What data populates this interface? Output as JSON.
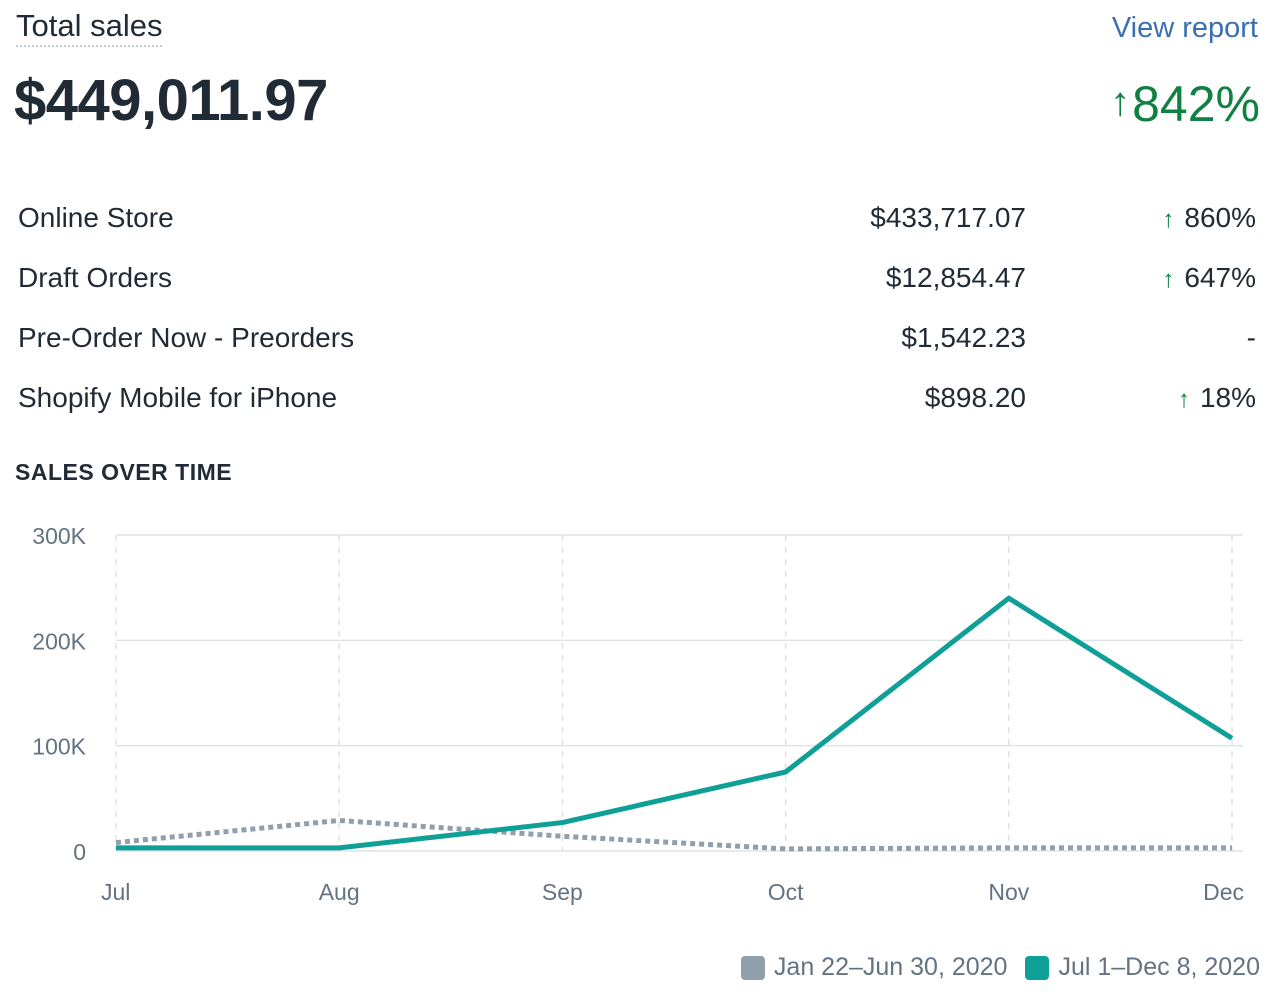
{
  "header": {
    "title": "Total sales",
    "view_report_label": "View report",
    "total_value": "$449,011.97",
    "total_change_arrow": "↑",
    "total_change": "842%"
  },
  "breakdown": [
    {
      "name": "Online Store",
      "amount": "$433,717.07",
      "arrow": "↑",
      "change": "860%"
    },
    {
      "name": "Draft Orders",
      "amount": "$12,854.47",
      "arrow": "↑",
      "change": "647%"
    },
    {
      "name": "Pre-Order Now - Preorders",
      "amount": "$1,542.23",
      "arrow": "",
      "change": "-"
    },
    {
      "name": "Shopify Mobile for iPhone",
      "amount": "$898.20",
      "arrow": "↑",
      "change": "18%"
    }
  ],
  "chart_section_title": "SALES OVER TIME",
  "colors": {
    "positive": "#108043",
    "link": "#3a6fb0",
    "current_series": "#0e9f96",
    "previous_series": "#919eab"
  },
  "chart_data": {
    "type": "line",
    "title": "SALES OVER TIME",
    "categories": [
      "Jul",
      "Aug",
      "Sep",
      "Oct",
      "Nov",
      "Dec"
    ],
    "y_tick_labels": [
      "0",
      "100K",
      "200K",
      "300K"
    ],
    "ylim": [
      0,
      300000
    ],
    "grid": true,
    "legend_position": "bottom-right",
    "series": [
      {
        "name": "Jan 22–Jun 30, 2020",
        "style": "dotted",
        "color": "#919eab",
        "values": [
          8000,
          29000,
          14000,
          2000,
          3000,
          3000
        ]
      },
      {
        "name": "Jul 1–Dec 8, 2020",
        "style": "solid",
        "color": "#0e9f96",
        "values": [
          3000,
          3000,
          27000,
          75000,
          240000,
          107000
        ]
      }
    ]
  }
}
